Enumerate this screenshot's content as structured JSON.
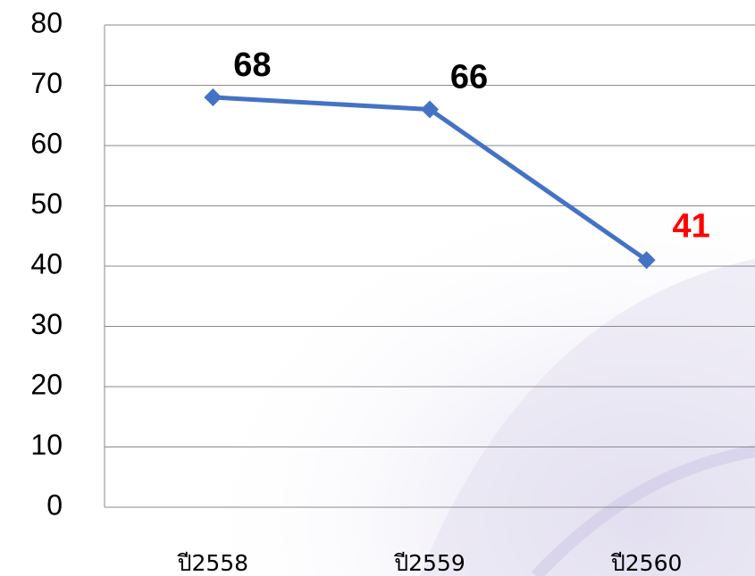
{
  "chart_data": {
    "type": "line",
    "categories": [
      "ปี2558",
      "ปี2559",
      "ปี2560"
    ],
    "values": [
      68,
      66,
      41
    ],
    "color": "#4472c4",
    "value_label_colors": [
      "#000000",
      "#000000",
      "#ff0000"
    ],
    "ylim": [
      0,
      80
    ],
    "yticks": [
      0,
      10,
      20,
      30,
      40,
      50,
      60,
      70,
      80
    ],
    "grid": true
  }
}
